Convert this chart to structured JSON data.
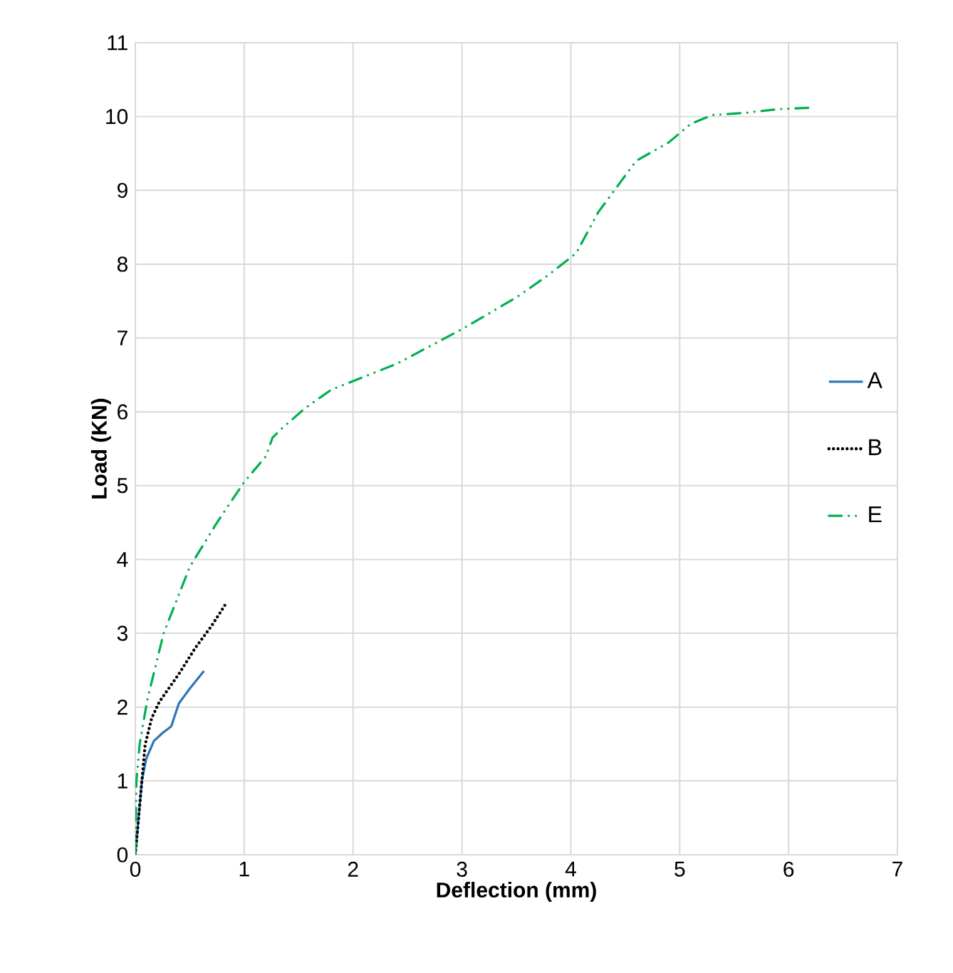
{
  "chart_data": {
    "type": "line",
    "xlabel": "Deflection (mm)",
    "ylabel": "Load (KN)",
    "xlim": [
      0,
      7
    ],
    "xticks": [
      0,
      1,
      2,
      3,
      4,
      5,
      6,
      7
    ],
    "ylim": [
      0,
      11
    ],
    "yticks": [
      0,
      1,
      2,
      3,
      4,
      5,
      6,
      7,
      8,
      9,
      10,
      11
    ],
    "grid": true,
    "legend": "right",
    "marker": "none",
    "series": [
      {
        "name": "A",
        "color": "#2e75b6",
        "line_style": "solid",
        "x": [
          0,
          0.03,
          0.06,
          0.1,
          0.17,
          0.25,
          0.33,
          0.4,
          0.5,
          0.63
        ],
        "values": [
          0,
          0.5,
          1.0,
          1.3,
          1.54,
          1.65,
          1.74,
          2.05,
          2.25,
          2.49
        ]
      },
      {
        "name": "B",
        "color": "#000000",
        "line_style": "dotted",
        "x": [
          0,
          0.03,
          0.06,
          0.09,
          0.15,
          0.22,
          0.4,
          0.55,
          0.7,
          0.84
        ],
        "values": [
          0,
          0.5,
          1.0,
          1.49,
          1.85,
          2.07,
          2.45,
          2.8,
          3.1,
          3.42
        ]
      },
      {
        "name": "E",
        "color": "#00b050",
        "line_style": "dashdotdotted",
        "x": [
          0,
          0.01,
          0.04,
          0.11,
          0.26,
          0.5,
          0.75,
          1.0,
          1.2,
          1.26,
          1.35,
          1.56,
          1.8,
          2.4,
          3.0,
          3.5,
          3.8,
          4.05,
          4.25,
          4.45,
          4.6,
          4.9,
          5.1,
          5.3,
          5.6,
          5.9,
          6.2
        ],
        "values": [
          0,
          1.0,
          1.5,
          2.1,
          3.0,
          3.9,
          4.5,
          5.05,
          5.4,
          5.65,
          5.78,
          6.05,
          6.3,
          6.65,
          7.12,
          7.55,
          7.86,
          8.15,
          8.7,
          9.1,
          9.4,
          9.65,
          9.9,
          10.02,
          10.05,
          10.1,
          10.12
        ]
      }
    ]
  }
}
